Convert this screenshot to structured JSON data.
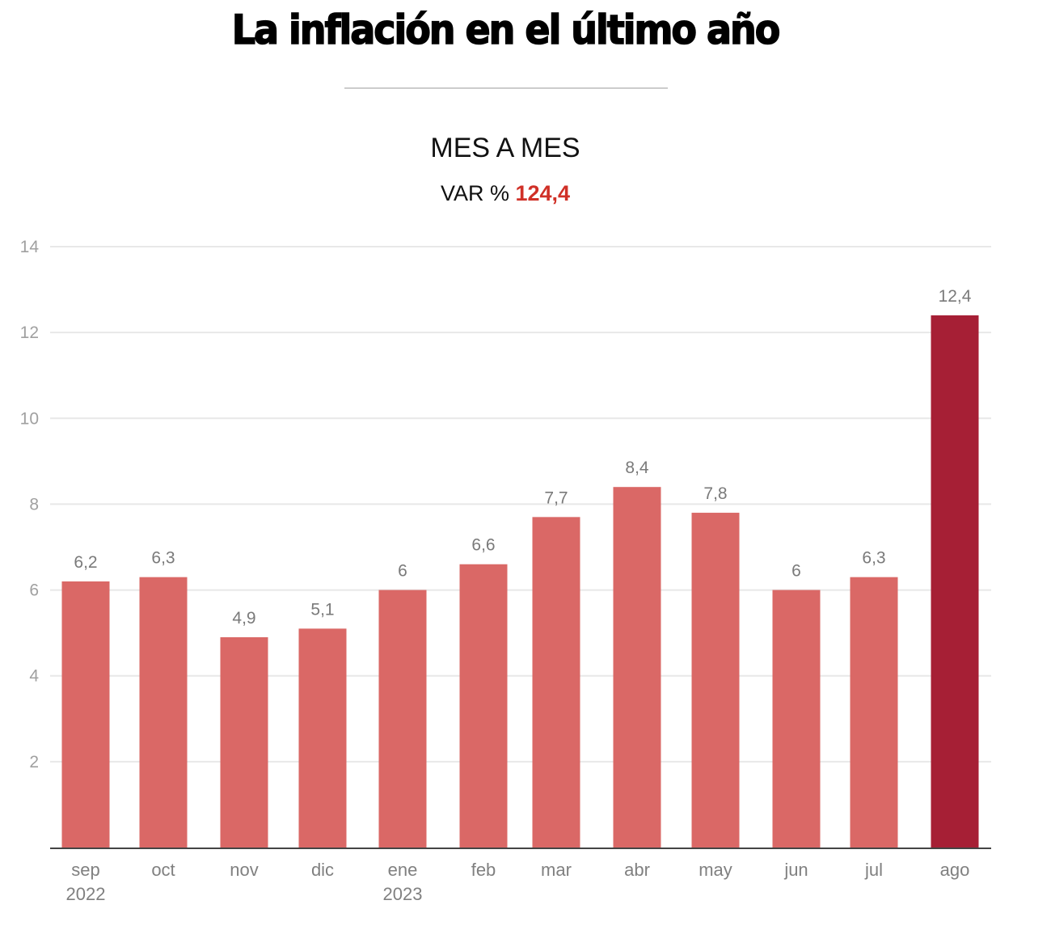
{
  "header": {
    "title": "La inflación en el último año",
    "subtitle": "MES A MES",
    "var_label": "VAR %",
    "var_value": "124,4"
  },
  "colors": {
    "bar": "#DA6866",
    "highlight_bar": "#A61F35",
    "accent_text": "#D03027",
    "grid": "#E8E8E8",
    "axis": "#444444"
  },
  "chart_data": {
    "type": "bar",
    "title": "La inflación en el último año",
    "subtitle": "MES A MES — VAR % 124,4",
    "xlabel": "",
    "ylabel": "",
    "categories": [
      "sep",
      "oct",
      "nov",
      "dic",
      "ene",
      "feb",
      "mar",
      "abr",
      "may",
      "jun",
      "jul",
      "ago"
    ],
    "category_sublabels": [
      "2022",
      "",
      "",
      "",
      "2023",
      "",
      "",
      "",
      "",
      "",
      "",
      ""
    ],
    "values": [
      6.2,
      6.3,
      4.9,
      5.1,
      6.0,
      6.6,
      7.7,
      8.4,
      7.8,
      6.0,
      6.3,
      12.4
    ],
    "value_labels": [
      "6,2",
      "6,3",
      "4,9",
      "5,1",
      "6",
      "6,6",
      "7,7",
      "8,4",
      "7,8",
      "6",
      "6,3",
      "12,4"
    ],
    "highlight_index": 11,
    "ylim": [
      0,
      14
    ],
    "yticks": [
      2,
      4,
      6,
      8,
      10,
      12,
      14
    ],
    "ytick_labels": [
      "2",
      "4",
      "6",
      "8",
      "10",
      "12",
      "14"
    ],
    "grid": true,
    "legend": "none"
  }
}
